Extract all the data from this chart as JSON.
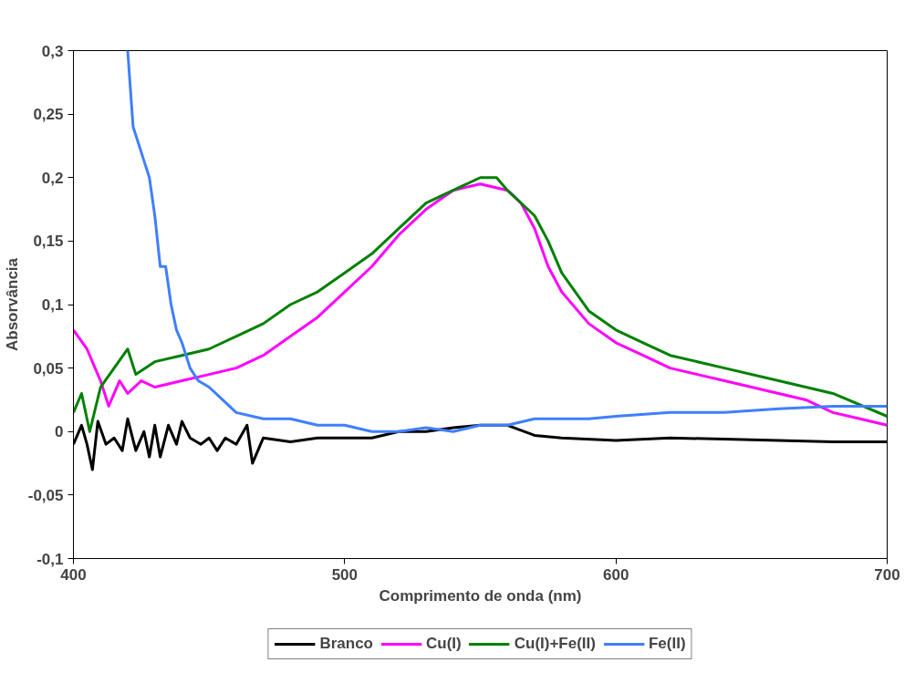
{
  "chart_data": {
    "type": "line",
    "xlabel": "Comprimento de onda (nm)",
    "ylabel": "Absorvância",
    "xlim": [
      400,
      700
    ],
    "xticks": [
      400,
      500,
      600,
      700
    ],
    "ylim": [
      -0.1,
      0.3
    ],
    "yticks": [
      {
        "value": -0.1,
        "label": "-0,1"
      },
      {
        "value": -0.05,
        "label": "-0,05"
      },
      {
        "value": 0,
        "label": "0"
      },
      {
        "value": 0.05,
        "label": "0,05"
      },
      {
        "value": 0.1,
        "label": "0,1"
      },
      {
        "value": 0.15,
        "label": "0,15"
      },
      {
        "value": 0.2,
        "label": "0,2"
      },
      {
        "value": 0.25,
        "label": "0,25"
      },
      {
        "value": 0.3,
        "label": "0,3"
      }
    ],
    "grid": false,
    "legend": "bottom",
    "marker": "none",
    "line_style": "solid",
    "series": [
      {
        "name": "Branco",
        "color": "#000000",
        "x": [
          400,
          403,
          405,
          407,
          409,
          412,
          415,
          418,
          420,
          423,
          426,
          428,
          430,
          432,
          435,
          438,
          440,
          443,
          447,
          450,
          453,
          456,
          460,
          464,
          466,
          470,
          480,
          490,
          500,
          510,
          520,
          530,
          540,
          550,
          560,
          570,
          580,
          600,
          620,
          640,
          660,
          680,
          700
        ],
        "values": [
          -0.01,
          0.005,
          -0.01,
          -0.03,
          0.008,
          -0.01,
          -0.005,
          -0.015,
          0.01,
          -0.015,
          0.0,
          -0.02,
          0.005,
          -0.02,
          0.005,
          -0.01,
          0.008,
          -0.005,
          -0.01,
          -0.005,
          -0.015,
          -0.005,
          -0.01,
          0.005,
          -0.025,
          -0.005,
          -0.008,
          -0.005,
          -0.005,
          -0.005,
          0.0,
          0.0,
          0.003,
          0.005,
          0.005,
          -0.003,
          -0.005,
          -0.007,
          -0.005,
          -0.006,
          -0.007,
          -0.008,
          -0.008
        ]
      },
      {
        "name": "Cu(I)",
        "color": "#ff00ff",
        "x": [
          400,
          405,
          410,
          413,
          417,
          420,
          425,
          430,
          440,
          450,
          460,
          470,
          480,
          490,
          500,
          510,
          520,
          530,
          540,
          550,
          560,
          565,
          570,
          575,
          580,
          590,
          600,
          610,
          620,
          630,
          640,
          650,
          660,
          670,
          680,
          690,
          700
        ],
        "values": [
          0.08,
          0.065,
          0.04,
          0.02,
          0.04,
          0.03,
          0.04,
          0.035,
          0.04,
          0.045,
          0.05,
          0.06,
          0.075,
          0.09,
          0.11,
          0.13,
          0.155,
          0.175,
          0.19,
          0.195,
          0.19,
          0.18,
          0.16,
          0.13,
          0.11,
          0.085,
          0.07,
          0.06,
          0.05,
          0.045,
          0.04,
          0.035,
          0.03,
          0.025,
          0.015,
          0.01,
          0.005
        ]
      },
      {
        "name": "Cu(I)+Fe(II)",
        "color": "#008000",
        "x": [
          400,
          403,
          406,
          410,
          415,
          420,
          423,
          430,
          440,
          450,
          460,
          470,
          480,
          490,
          500,
          510,
          520,
          530,
          540,
          550,
          556,
          560,
          570,
          575,
          580,
          590,
          600,
          610,
          620,
          640,
          660,
          680,
          700
        ],
        "values": [
          0.015,
          0.03,
          0.0,
          0.035,
          0.05,
          0.065,
          0.045,
          0.055,
          0.06,
          0.065,
          0.075,
          0.085,
          0.1,
          0.11,
          0.125,
          0.14,
          0.16,
          0.18,
          0.19,
          0.2,
          0.2,
          0.19,
          0.17,
          0.15,
          0.125,
          0.095,
          0.08,
          0.07,
          0.06,
          0.05,
          0.04,
          0.03,
          0.012
        ]
      },
      {
        "name": "Fe(II)",
        "color": "#3f7fff",
        "x": [
          420,
          422,
          425,
          428,
          430,
          432,
          434,
          436,
          438,
          440,
          443,
          446,
          450,
          455,
          460,
          470,
          480,
          490,
          500,
          510,
          520,
          530,
          540,
          550,
          560,
          570,
          580,
          590,
          600,
          620,
          640,
          660,
          680,
          700
        ],
        "values": [
          0.3,
          0.24,
          0.22,
          0.2,
          0.17,
          0.13,
          0.13,
          0.1,
          0.08,
          0.07,
          0.05,
          0.04,
          0.035,
          0.025,
          0.015,
          0.01,
          0.01,
          0.005,
          0.005,
          0.0,
          0.0,
          0.003,
          0.0,
          0.005,
          0.005,
          0.01,
          0.01,
          0.01,
          0.012,
          0.015,
          0.015,
          0.018,
          0.02,
          0.02
        ]
      }
    ]
  }
}
